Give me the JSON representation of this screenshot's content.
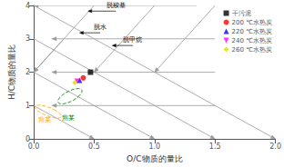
{
  "chart_data": {
    "type": "scatter",
    "xlabel": "O/C物质的量比",
    "ylabel": "H/C物质的量比",
    "xlim": [
      0,
      2.0
    ],
    "ylim": [
      0,
      4.0
    ],
    "xticks": [
      {
        "value": 0,
        "label": "0.0"
      },
      {
        "value": 0.5,
        "label": "0.5"
      },
      {
        "value": 1.0,
        "label": "1.0"
      },
      {
        "value": 1.5,
        "label": "1.5"
      },
      {
        "value": 2.0,
        "label": "2.0"
      }
    ],
    "yticks": [
      0,
      1,
      2,
      3,
      4
    ],
    "grid": false,
    "legend": "upper right",
    "series": [
      {
        "name": "干污泥",
        "color": "black",
        "marker": "square",
        "x": [
          0.47
        ],
        "y": [
          2.0
        ]
      },
      {
        "name": "200 ℃水热炭",
        "color": "red",
        "marker": "circle",
        "x": [
          0.41
        ],
        "y": [
          1.83
        ]
      },
      {
        "name": "220 ℃水热炭",
        "color": "blue",
        "marker": "triangle-up",
        "x": [
          0.38
        ],
        "y": [
          1.76
        ]
      },
      {
        "name": "240 ℃水热炭",
        "color": "magenta",
        "marker": "triangle-down",
        "x": [
          0.36
        ],
        "y": [
          1.73
        ]
      },
      {
        "name": "260 ℃水热炭",
        "color": "#dddd00",
        "marker": "diamond",
        "x": [
          0.34
        ],
        "y": [
          1.69
        ]
      }
    ],
    "arrows": {
      "color": "#999999",
      "segments": [
        [
          0.0,
          4.0,
          2.0,
          0.0
        ],
        [
          0.0,
          3.0,
          1.5,
          0.0
        ],
        [
          0.0,
          2.0,
          1.0,
          0.0
        ],
        [
          0.0,
          1.0,
          0.5,
          0.0
        ],
        [
          0.5,
          4.0,
          0.0,
          2.0
        ],
        [
          1.0,
          4.0,
          0.5,
          2.0
        ],
        [
          1.5,
          4.0,
          1.0,
          2.0
        ],
        [
          0.25,
          3.0,
          0.0,
          2.0
        ],
        [
          1.35,
          4.0,
          0.0,
          4.0
        ],
        [
          1.5,
          3.0,
          0.15,
          3.0
        ],
        [
          1.5,
          2.0,
          0.15,
          2.0
        ],
        [
          1.5,
          1.0,
          0.15,
          1.0
        ]
      ]
    },
    "annotations": [
      {
        "text": "脱羧基",
        "x": 0.68,
        "y": 3.9,
        "arrow": {
          "color": "black",
          "segment": [
            0.68,
            3.83,
            0.45,
            3.83
          ]
        }
      },
      {
        "text": "脱水",
        "x": 0.55,
        "y": 3.25,
        "arrow": {
          "color": "black",
          "segment": [
            0.55,
            3.18,
            0.38,
            3.18
          ]
        }
      },
      {
        "text": "脱甲烷",
        "x": 0.82,
        "y": 2.87,
        "arrow": {
          "color": "black",
          "segment": [
            0.82,
            2.8,
            0.65,
            2.8
          ]
        }
      }
    ],
    "regions": [
      {
        "cx": 0.12,
        "cy": 0.82,
        "w": 0.14,
        "h": 0.42,
        "angle": 25,
        "color": "orange",
        "line_style": "dashed",
        "label": {
          "text": "蒴某",
          "x": 0.035,
          "y": 0.48,
          "color": "orange"
        }
      },
      {
        "cx": 0.3,
        "cy": 1.28,
        "w": 0.14,
        "h": 0.48,
        "angle": -18,
        "color": "green",
        "line_style": "dashed",
        "label": {
          "text": "蒴某",
          "x": 0.235,
          "y": 0.52,
          "color": "green"
        }
      }
    ]
  }
}
